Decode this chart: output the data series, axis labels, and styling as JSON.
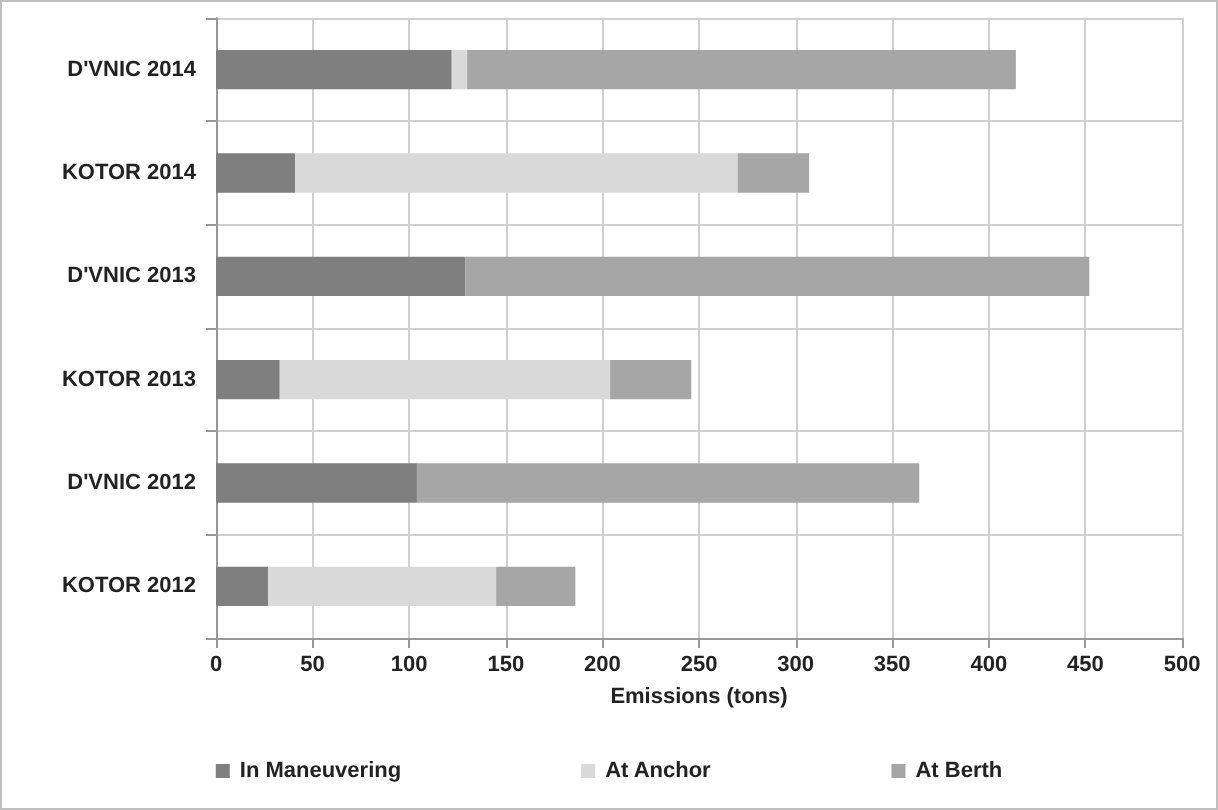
{
  "chart_data": {
    "type": "bar",
    "orientation": "horizontal",
    "stacked": true,
    "categories": [
      "D'VNIC 2014",
      "KOTOR 2014",
      "D'VNIC 2013",
      "KOTOR 2013",
      "D'VNIC 2012",
      "KOTOR 2012"
    ],
    "series": [
      {
        "name": "In Maneuvering",
        "color": "#7f7f7f",
        "values": [
          122,
          41,
          129,
          33,
          104,
          27
        ]
      },
      {
        "name": "At Anchor",
        "color": "#d9d9d9",
        "values": [
          8,
          229,
          0,
          171,
          0,
          118
        ]
      },
      {
        "name": "At Berth",
        "color": "#a6a6a6",
        "values": [
          284,
          37,
          323,
          42,
          260,
          41
        ]
      }
    ],
    "xlabel": "Emissions (tons)",
    "xlim": [
      0,
      500
    ],
    "xticks": [
      0,
      50,
      100,
      150,
      200,
      250,
      300,
      350,
      400,
      450,
      500
    ],
    "grid": true,
    "legend": "bottom"
  }
}
